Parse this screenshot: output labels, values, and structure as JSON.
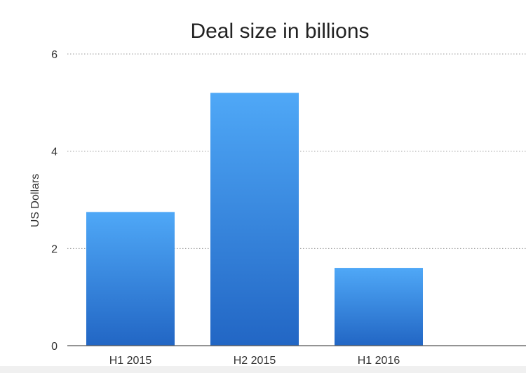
{
  "chart_data": {
    "type": "bar",
    "title": "Deal size in billions",
    "xlabel": "",
    "ylabel": "US Dollars",
    "categories": [
      "H1 2015",
      "H2 2015",
      "H1 2016"
    ],
    "values": [
      2.75,
      5.2,
      1.6
    ],
    "ylim": [
      0,
      6
    ],
    "yticks": [
      0,
      2,
      4,
      6
    ],
    "grid": true,
    "legend": "none",
    "colors": {
      "bar_top": "#4fa8f7",
      "bar_bottom": "#2266c4",
      "grid": "#9a9a9a",
      "axis": "#555555"
    }
  }
}
